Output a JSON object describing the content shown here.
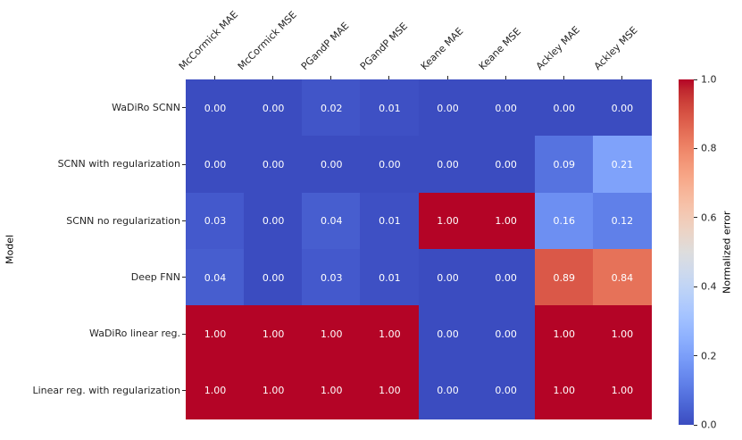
{
  "chart_data": {
    "type": "heatmap",
    "title": "",
    "xlabel": "",
    "ylabel": "Model",
    "columns": [
      "McCormick MAE",
      "McCormick MSE",
      "PGandP MAE",
      "PGandP MSE",
      "Keane MAE",
      "Keane MSE",
      "Ackley MAE",
      "Ackley MSE"
    ],
    "rows": [
      "WaDiRo SCNN",
      "SCNN with regularization",
      "SCNN no regularization",
      "Deep FNN",
      "WaDiRo linear reg.",
      "Linear reg. with regularization"
    ],
    "values": [
      [
        0.0,
        0.0,
        0.02,
        0.01,
        0.0,
        0.0,
        0.0,
        0.0
      ],
      [
        0.0,
        0.0,
        0.0,
        0.0,
        0.0,
        0.0,
        0.09,
        0.21
      ],
      [
        0.03,
        0.0,
        0.04,
        0.01,
        1.0,
        1.0,
        0.16,
        0.12
      ],
      [
        0.04,
        0.0,
        0.03,
        0.01,
        0.0,
        0.0,
        0.89,
        0.84
      ],
      [
        1.0,
        1.0,
        1.0,
        1.0,
        0.0,
        0.0,
        1.0,
        1.0
      ],
      [
        1.0,
        1.0,
        1.0,
        1.0,
        0.0,
        0.0,
        1.0,
        1.0
      ]
    ],
    "annotation_format": ".2f",
    "annotation_color": "#ffffff",
    "grid": false,
    "legend_position": "none",
    "colormap": {
      "name": "coolwarm",
      "min_color": "#3b4cc0",
      "mid_color": "#dddddd",
      "max_color": "#b40426"
    },
    "colorbar": {
      "label": "Normalized error",
      "range": [
        0.0,
        1.0
      ],
      "tick_values": [
        0.0,
        0.2,
        0.4,
        0.6,
        0.8,
        1.0
      ],
      "tick_labels": [
        "0.0",
        "0.2",
        "0.4",
        "0.6",
        "0.8",
        "1.0"
      ]
    }
  }
}
